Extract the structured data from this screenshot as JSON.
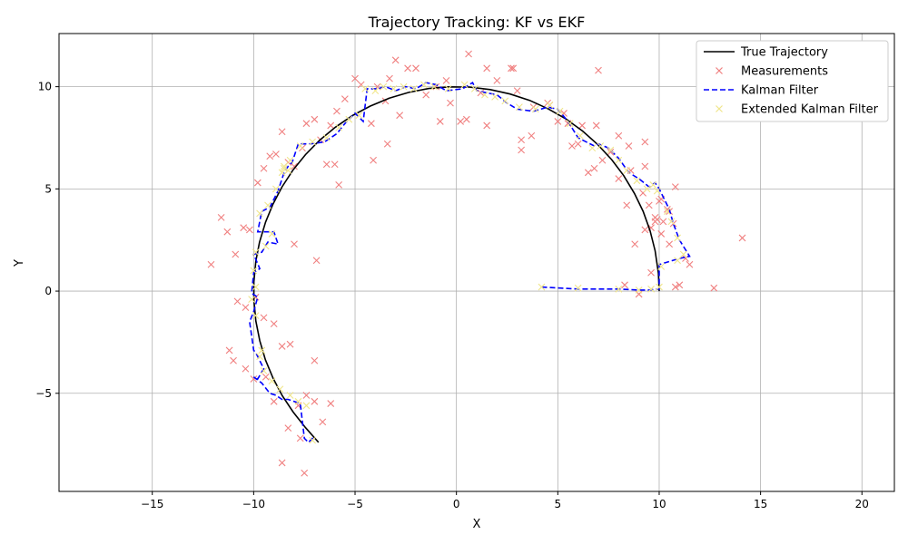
{
  "chart_data": {
    "type": "line",
    "title": "Trajectory Tracking: KF vs EKF",
    "xlabel": "X",
    "ylabel": "Y",
    "xlim": [
      -19.6,
      21.6
    ],
    "ylim": [
      -9.8,
      12.6
    ],
    "xticks": [
      -15,
      -10,
      -5,
      0,
      5,
      10,
      15,
      20
    ],
    "yticks": [
      -5,
      0,
      5,
      10
    ],
    "grid": true,
    "legend_position": "top-right",
    "colors": {
      "true": "#000000",
      "measurements": "#f08080",
      "kf": "#0000ff",
      "ekf": "#f0e68c"
    },
    "series": [
      {
        "name": "True Trajectory",
        "style": "solid-line",
        "x": [
          10,
          9.96,
          9.8,
          9.55,
          9.21,
          8.78,
          8.25,
          7.66,
          6.97,
          6.22,
          5.4,
          4.54,
          3.61,
          2.65,
          1.67,
          0.66,
          -0.35,
          -1.36,
          -2.35,
          -3.31,
          -4.25,
          -5.14,
          -5.97,
          -6.74,
          -7.44,
          -8.07,
          -8.6,
          -9.05,
          -9.41,
          -9.71,
          -9.89,
          -9.99,
          -9.99,
          -9.89,
          -9.7,
          -9.42,
          -9.04,
          -8.59,
          -8.05,
          -7.44,
          -6.8
        ],
        "y": [
          0,
          0.88,
          1.97,
          2.96,
          3.9,
          4.78,
          5.65,
          6.43,
          7.17,
          7.83,
          8.42,
          8.91,
          9.33,
          9.64,
          9.86,
          9.98,
          9.99,
          9.91,
          9.72,
          9.44,
          9.05,
          8.58,
          8.02,
          7.39,
          6.68,
          5.91,
          5.1,
          4.25,
          3.38,
          2.39,
          1.48,
          0.45,
          -0.44,
          -1.47,
          -2.43,
          -3.36,
          -4.27,
          -5.12,
          -5.92,
          -6.68,
          -7.4
        ]
      },
      {
        "name": "Measurements",
        "style": "x-marker",
        "x": [
          12.7,
          14.1,
          11.5,
          11.0,
          10.8,
          10.5,
          10.2,
          9.0,
          8.3,
          9.6,
          10.1,
          10.7,
          11.3,
          9.9,
          9.5,
          8.8,
          9.3,
          10.8,
          9.6,
          9.2,
          8.6,
          10.4,
          10.1,
          9.8,
          10.0,
          9.3,
          8.0,
          8.5,
          7.6,
          7.2,
          6.8,
          6.5,
          7.0,
          5.7,
          6.0,
          6.2,
          5.5,
          5.0,
          4.5,
          3.7,
          3.2,
          3.0,
          2.7,
          2.0,
          1.5,
          1.2,
          0.6,
          0.2,
          -0.3,
          -0.5,
          -1.0,
          -1.5,
          -2.0,
          -2.4,
          -3.0,
          -3.3,
          -3.5,
          -3.9,
          -4.2,
          -4.7,
          -5.0,
          -5.5,
          -5.9,
          -6.2,
          -6.7,
          -7.0,
          -7.4,
          -7.6,
          -8.0,
          -8.3,
          -8.6,
          -8.9,
          -9.2,
          -9.5,
          -9.8,
          -10.2,
          -10.5,
          -10.9,
          -11.3,
          -11.6,
          -12.1,
          -10.8,
          -10.4,
          -9.9,
          -9.5,
          -9.0,
          -8.6,
          -8.2,
          -7.8,
          -7.4,
          -7.0,
          -6.6,
          -6.2,
          -7.7,
          -8.3,
          -8.6,
          -11.2,
          -11.0,
          -10.4,
          -10.0,
          -9.4,
          -9.0,
          -7.0,
          -7.5,
          -8.0,
          -6.9,
          -6.4,
          -6.0,
          -5.8,
          -4.1,
          -3.4,
          -2.8,
          -0.8,
          0.5,
          1.5,
          2.8,
          3.2,
          3.8,
          4.6,
          5.3,
          6.9,
          8.0,
          8.4,
          9.3,
          9.8,
          10.5
        ],
        "y": [
          0.15,
          2.6,
          1.3,
          0.3,
          0.2,
          2.3,
          3.4,
          -0.15,
          0.3,
          0.9,
          2.8,
          3.3,
          1.6,
          3.5,
          4.2,
          2.3,
          3.0,
          5.1,
          3.1,
          4.8,
          5.9,
          4.0,
          4.5,
          3.6,
          4.4,
          6.1,
          7.6,
          7.1,
          6.8,
          6.4,
          6.0,
          5.8,
          10.8,
          7.1,
          7.2,
          8.1,
          8.2,
          8.3,
          9.2,
          7.6,
          6.9,
          9.8,
          10.9,
          10.3,
          8.1,
          9.7,
          11.6,
          8.3,
          9.2,
          10.3,
          10.0,
          9.6,
          10.9,
          10.9,
          11.3,
          10.4,
          9.3,
          10.0,
          8.2,
          10.1,
          10.4,
          9.4,
          8.8,
          8.1,
          7.4,
          8.4,
          8.2,
          7.0,
          6.1,
          6.3,
          7.8,
          6.7,
          6.6,
          6.0,
          5.3,
          3.0,
          3.1,
          1.8,
          2.9,
          3.6,
          1.3,
          -0.5,
          -0.8,
          -0.3,
          -1.3,
          -1.6,
          -2.7,
          -2.6,
          -5.6,
          -5.1,
          -5.4,
          -6.4,
          -5.5,
          -7.2,
          -6.7,
          -8.4,
          -2.9,
          -3.4,
          -3.8,
          -4.3,
          -4.2,
          -5.4,
          -3.4,
          -8.9,
          2.3,
          1.5,
          6.2,
          6.2,
          5.2,
          6.4,
          7.2,
          8.6,
          8.3,
          8.4,
          10.9,
          10.9,
          7.4,
          9.0,
          9.1,
          8.7,
          8.1,
          5.5,
          4.2,
          7.3,
          3.4,
          3.9
        ]
      },
      {
        "name": "Kalman Filter",
        "style": "dashed-line",
        "x": [
          4.2,
          6.0,
          8.0,
          9.0,
          9.5,
          10.0,
          10.0,
          11.0,
          11.5,
          11.0,
          10.7,
          10.5,
          10.0,
          9.8,
          9.5,
          9.0,
          8.5,
          8.0,
          7.5,
          7.0,
          6.8,
          6.0,
          5.5,
          5.0,
          4.5,
          3.8,
          3.0,
          2.5,
          2.0,
          1.5,
          1.0,
          0.8,
          0.3,
          -0.5,
          -1.0,
          -1.5,
          -2.0,
          -2.5,
          -3.0,
          -3.5,
          -3.9,
          -4.4,
          -4.6,
          -5.0,
          -5.2,
          -5.5,
          -5.9,
          -6.5,
          -7.2,
          -7.8,
          -8.1,
          -8.3,
          -8.5,
          -8.8,
          -9.2,
          -9.6,
          -9.8,
          -9.0,
          -8.8,
          -9.3,
          -9.6,
          -10.0,
          -9.7,
          -10.0,
          -10.1,
          -9.8,
          -10.0,
          -10.2,
          -10.0,
          -9.9,
          -9.5,
          -9.8,
          -10.0,
          -9.6,
          -9.2,
          -8.9,
          -8.6,
          -8.3,
          -8.0,
          -7.7,
          -7.5,
          -7.3,
          -7.0
        ],
        "y": [
          0.2,
          0.1,
          0.1,
          0.05,
          0.05,
          0.1,
          1.3,
          1.6,
          1.7,
          2.5,
          3.3,
          4.0,
          5.0,
          5.3,
          5.1,
          5.5,
          5.8,
          6.5,
          7.0,
          7.2,
          7.1,
          7.5,
          8.3,
          8.9,
          9.0,
          8.8,
          8.9,
          9.2,
          9.6,
          9.7,
          9.8,
          10.2,
          9.9,
          9.8,
          10.1,
          10.2,
          9.9,
          10.0,
          9.8,
          10.0,
          9.9,
          9.9,
          8.3,
          8.7,
          8.5,
          8.2,
          7.7,
          7.3,
          7.2,
          7.2,
          6.3,
          6.1,
          5.8,
          4.9,
          4.1,
          3.9,
          2.9,
          2.9,
          2.3,
          2.4,
          1.9,
          1.8,
          1.1,
          0.9,
          -0.1,
          -0.3,
          -1.0,
          -1.5,
          -2.9,
          -3.0,
          -3.8,
          -4.3,
          -4.2,
          -4.5,
          -5.0,
          -5.1,
          -5.3,
          -5.3,
          -5.4,
          -5.5,
          -7.2,
          -7.4,
          -7.1
        ]
      },
      {
        "name": "Extended Kalman Filter",
        "style": "x-marker",
        "x": [
          4.2,
          6.0,
          8.0,
          9.0,
          9.6,
          10.0,
          10.1,
          10.9,
          11.2,
          10.9,
          10.6,
          10.4,
          9.9,
          9.7,
          9.4,
          8.9,
          8.4,
          8.0,
          7.6,
          7.1,
          6.7,
          6.1,
          5.6,
          5.1,
          4.6,
          3.9,
          3.1,
          2.4,
          1.9,
          1.4,
          0.9,
          0.4,
          -0.4,
          -1.1,
          -1.6,
          -2.1,
          -2.6,
          -3.1,
          -3.6,
          -4.0,
          -4.5,
          -4.8,
          -5.3,
          -5.8,
          -6.4,
          -7.1,
          -7.7,
          -8.2,
          -8.5,
          -8.9,
          -9.3,
          -9.7,
          -9.1,
          -9.4,
          -9.9,
          -10.0,
          -9.9,
          -10.1,
          -9.9,
          -9.6,
          -9.7,
          -9.5,
          -9.1,
          -8.7,
          -8.2,
          -7.8,
          -7.4,
          -7.1,
          -8.5,
          -8.3,
          -8.6
        ],
        "y": [
          0.2,
          0.15,
          0.1,
          0.05,
          0.1,
          0.2,
          1.2,
          1.5,
          1.8,
          2.6,
          3.4,
          3.9,
          4.9,
          5.2,
          5.0,
          5.4,
          5.9,
          6.4,
          6.9,
          7.1,
          7.0,
          7.6,
          8.2,
          8.8,
          9.1,
          8.9,
          9.0,
          9.3,
          9.5,
          9.6,
          9.9,
          10.1,
          9.9,
          10.0,
          10.1,
          9.9,
          10.0,
          9.9,
          10.0,
          9.8,
          9.9,
          8.6,
          8.4,
          8.0,
          7.5,
          7.3,
          7.1,
          6.4,
          6.0,
          5.0,
          4.2,
          3.8,
          2.8,
          2.2,
          1.9,
          1.0,
          0.2,
          -0.4,
          -1.2,
          -2.9,
          -3.2,
          -3.9,
          -4.4,
          -4.8,
          -5.1,
          -5.4,
          -5.6,
          -7.3,
          6.1,
          5.9,
          5.8
        ]
      }
    ]
  }
}
